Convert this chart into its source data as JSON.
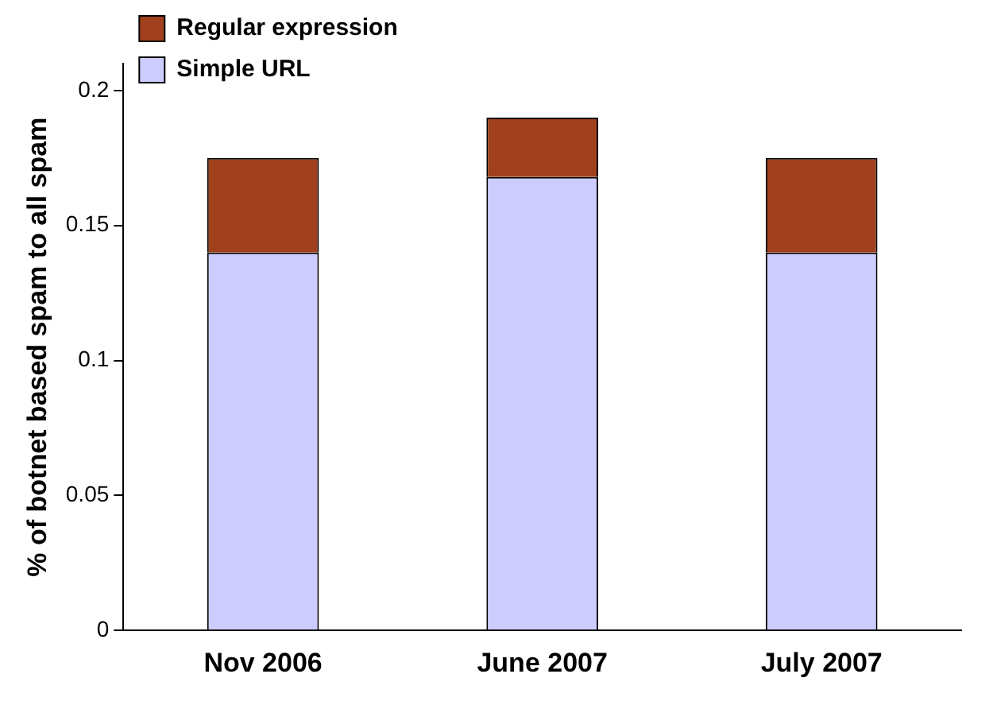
{
  "chart_data": {
    "type": "bar",
    "ylabel": "% of botnet based spam to all spam",
    "categories": [
      "Nov 2006",
      "June 2007",
      "July 2007"
    ],
    "series": [
      {
        "name": "Simple URL",
        "color": "#ccccff",
        "values": [
          0.14,
          0.168,
          0.14
        ]
      },
      {
        "name": "Regular expression",
        "color": "#a0401c",
        "values": [
          0.035,
          0.022,
          0.035
        ]
      }
    ],
    "stacked": true,
    "ylim": [
      0,
      0.21
    ],
    "yticks": [
      0,
      0.05,
      0.1,
      0.15,
      0.2
    ],
    "grid": false,
    "legend": "top left"
  }
}
